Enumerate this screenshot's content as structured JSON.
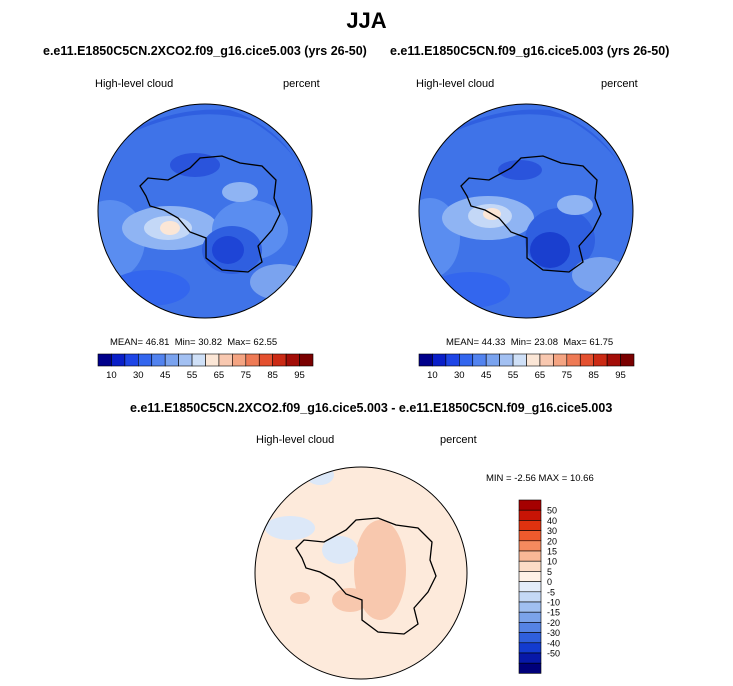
{
  "page_title": "JJA",
  "chart_data": [
    {
      "type": "heatmap",
      "projection": "south-polar-stereographic",
      "title": "e.e11.E1850C5CN.2XCO2.f09_g16.cice5.003 (yrs 26-50)",
      "variable": "High-level cloud",
      "units": "percent",
      "stats": {
        "mean_label": "MEAN=",
        "mean": "46.81",
        "min_label": "Min=",
        "min": "30.82",
        "max_label": "Max=",
        "max": "62.55"
      },
      "colorbar": {
        "colors": [
          "#00008b",
          "#0a1fc8",
          "#1e45e6",
          "#3366ee",
          "#5283ef",
          "#7aa3ef",
          "#a2c0f2",
          "#cfe0f7",
          "#fbe6d6",
          "#f8c8b0",
          "#f4a482",
          "#ee7a55",
          "#e4502f",
          "#cb2a14",
          "#a30d07",
          "#7a0000"
        ],
        "labels": [
          "10",
          "30",
          "45",
          "55",
          "65",
          "75",
          "85",
          "95"
        ]
      }
    },
    {
      "type": "heatmap",
      "projection": "south-polar-stereographic",
      "title": "e.e11.E1850C5CN.f09_g16.cice5.003 (yrs 26-50)",
      "variable": "High-level cloud",
      "units": "percent",
      "stats": {
        "mean_label": "MEAN=",
        "mean": "44.33",
        "min_label": "Min=",
        "min": "23.08",
        "max_label": "Max=",
        "max": "61.75"
      },
      "colorbar": {
        "colors": [
          "#00008b",
          "#0a1fc8",
          "#1e45e6",
          "#3366ee",
          "#5283ef",
          "#7aa3ef",
          "#a2c0f2",
          "#cfe0f7",
          "#fbe6d6",
          "#f8c8b0",
          "#f4a482",
          "#ee7a55",
          "#e4502f",
          "#cb2a14",
          "#a30d07",
          "#7a0000"
        ],
        "labels": [
          "10",
          "30",
          "45",
          "55",
          "65",
          "75",
          "85",
          "95"
        ]
      }
    },
    {
      "type": "heatmap",
      "projection": "south-polar-stereographic",
      "title": "e.e11.E1850C5CN.2XCO2.f09_g16.cice5.003 - e.e11.E1850C5CN.f09_g16.cice5.003",
      "variable": "High-level cloud",
      "units": "percent",
      "stats": {
        "min_label": "MIN =",
        "min": "-2.56",
        "max_label": "MAX =",
        "max": "10.66"
      },
      "colorbar": {
        "orientation": "vertical",
        "colors_top_to_bottom": [
          "#a50000",
          "#c81405",
          "#e0320f",
          "#ef5a2d",
          "#f58a5e",
          "#f9b796",
          "#fcdcc6",
          "#fff1e6",
          "#e3ecfa",
          "#c4d8f5",
          "#a0bff0",
          "#7ba3ea",
          "#5583e4",
          "#2f5fdc",
          "#133bcf",
          "#0718a8",
          "#00007a"
        ],
        "labels_top_to_bottom": [
          "50",
          "40",
          "30",
          "20",
          "15",
          "10",
          "5",
          "0",
          "-5",
          "-10",
          "-15",
          "-20",
          "-30",
          "-40",
          "-50"
        ]
      }
    }
  ]
}
